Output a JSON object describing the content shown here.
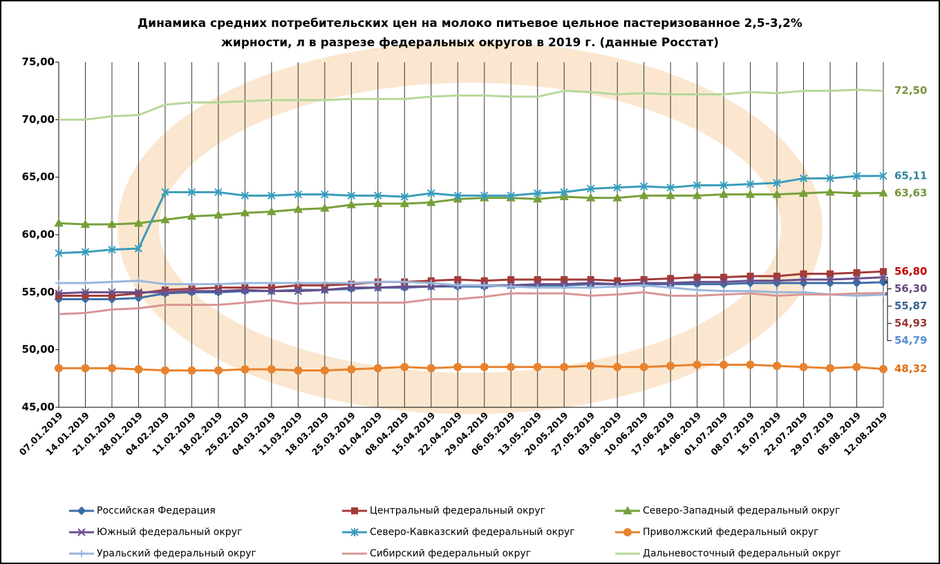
{
  "chart_data": {
    "type": "line",
    "title": [
      "Динамика средних потребительских цен на молоко питьевое цельное пастеризованное 2,5-3,2%",
      "жирности, л в разрезе федеральных округов  в 2019 г. (данные Росстат)"
    ],
    "categories": [
      "07.01.2019",
      "14.01.2019",
      "21.01.2019",
      "28.01.2019",
      "04.02.2019",
      "11.02.2019",
      "18.02.2019",
      "25.02.2019",
      "04.03.2019",
      "11.03.2019",
      "18.03.2019",
      "25.03.2019",
      "01.04.2019",
      "08.04.2019",
      "15.04.2019",
      "22.04.2019",
      "29.04.2019",
      "06.05.2019",
      "13.05.2019",
      "20.05.2019",
      "27.05.2019",
      "03.06.2019",
      "10.06.2019",
      "17.06.2019",
      "24.06.2019",
      "01.07.2019",
      "08.07.2019",
      "15.07.2019",
      "22.07.2019",
      "29.07.2019",
      "05.08.2019",
      "12.08.2019"
    ],
    "ylim": [
      45,
      75
    ],
    "yticks": [
      {
        "value": 45,
        "label": "45,00"
      },
      {
        "value": 50,
        "label": "50,00"
      },
      {
        "value": 55,
        "label": "55,00"
      },
      {
        "value": 60,
        "label": "60,00"
      },
      {
        "value": 65,
        "label": "65,00"
      },
      {
        "value": 70,
        "label": "70,00"
      },
      {
        "value": 75,
        "label": "75,00"
      }
    ],
    "grid": "vertical",
    "series": [
      {
        "name": "Российская Федерация",
        "color": "#3a6ea8",
        "label_color": "#376092",
        "marker": "diamond",
        "values": [
          54.4,
          54.4,
          54.4,
          54.5,
          54.9,
          55.0,
          55.0,
          55.1,
          55.1,
          55.2,
          55.2,
          55.3,
          55.4,
          55.4,
          55.5,
          55.5,
          55.5,
          55.6,
          55.6,
          55.6,
          55.7,
          55.7,
          55.7,
          55.7,
          55.7,
          55.7,
          55.8,
          55.8,
          55.8,
          55.8,
          55.8,
          55.87
        ],
        "value_labels": [
          null,
          null,
          null,
          null,
          null,
          null,
          null,
          null,
          null,
          null,
          null,
          null,
          null,
          null,
          null,
          null,
          null,
          null,
          null,
          null,
          null,
          null,
          null,
          null,
          null,
          null,
          null,
          null,
          null,
          null,
          null,
          "55,87"
        ]
      },
      {
        "name": "Центральный федеральный округ",
        "color": "#a33b38",
        "label_color": "#c00000",
        "marker": "square",
        "values": [
          54.7,
          54.7,
          54.7,
          54.9,
          55.2,
          55.3,
          55.4,
          55.4,
          55.4,
          55.6,
          55.6,
          55.7,
          55.9,
          55.9,
          56.0,
          56.1,
          56.0,
          56.1,
          56.1,
          56.1,
          56.1,
          56.0,
          56.1,
          56.2,
          56.3,
          56.3,
          56.4,
          56.4,
          56.6,
          56.6,
          56.7,
          56.8
        ],
        "value_labels": [
          null,
          null,
          null,
          null,
          null,
          null,
          null,
          null,
          null,
          null,
          null,
          null,
          null,
          null,
          null,
          null,
          null,
          null,
          null,
          null,
          null,
          null,
          null,
          null,
          null,
          null,
          null,
          null,
          null,
          null,
          null,
          "56,80"
        ]
      },
      {
        "name": "Северо-Западный федеральный округ",
        "color": "#77a03a",
        "label_color": "#77933c",
        "marker": "triangle",
        "values": [
          61.0,
          60.9,
          60.9,
          61.0,
          61.3,
          61.6,
          61.7,
          61.9,
          62.0,
          62.2,
          62.3,
          62.6,
          62.7,
          62.7,
          62.8,
          63.1,
          63.2,
          63.2,
          63.1,
          63.3,
          63.2,
          63.2,
          63.4,
          63.4,
          63.4,
          63.5,
          63.5,
          63.5,
          63.6,
          63.7,
          63.6,
          63.63
        ],
        "value_labels": [
          null,
          null,
          null,
          null,
          null,
          null,
          null,
          null,
          null,
          null,
          null,
          null,
          null,
          null,
          null,
          null,
          null,
          null,
          null,
          null,
          null,
          null,
          null,
          null,
          null,
          null,
          null,
          null,
          null,
          null,
          null,
          "63,63"
        ]
      },
      {
        "name": "Южный федеральный округ",
        "color": "#6a4f8c",
        "label_color": "#5f497a",
        "marker": "x",
        "values": [
          54.9,
          55.0,
          55.0,
          55.0,
          55.0,
          55.1,
          55.1,
          55.2,
          55.1,
          55.1,
          55.2,
          55.4,
          55.4,
          55.5,
          55.5,
          55.6,
          55.6,
          55.6,
          55.7,
          55.7,
          55.8,
          55.7,
          55.8,
          55.8,
          55.9,
          55.9,
          56.0,
          56.0,
          56.1,
          56.1,
          56.2,
          56.3
        ],
        "value_labels": [
          null,
          null,
          null,
          null,
          null,
          null,
          null,
          null,
          null,
          null,
          null,
          null,
          null,
          null,
          null,
          null,
          null,
          null,
          null,
          null,
          null,
          null,
          null,
          null,
          null,
          null,
          null,
          null,
          null,
          null,
          null,
          "56,30"
        ]
      },
      {
        "name": "Северо-Кавказский федеральный округ",
        "color": "#3a9cba",
        "label_color": "#31849b",
        "marker": "asterisk",
        "values": [
          58.4,
          58.5,
          58.7,
          58.8,
          63.7,
          63.7,
          63.7,
          63.4,
          63.4,
          63.5,
          63.5,
          63.4,
          63.4,
          63.3,
          63.6,
          63.4,
          63.4,
          63.4,
          63.6,
          63.7,
          64.0,
          64.1,
          64.2,
          64.1,
          64.3,
          64.3,
          64.4,
          64.5,
          64.9,
          64.9,
          65.1,
          65.11
        ],
        "value_labels": [
          null,
          null,
          null,
          null,
          null,
          null,
          null,
          null,
          null,
          null,
          null,
          null,
          null,
          null,
          null,
          null,
          null,
          null,
          null,
          null,
          null,
          null,
          null,
          null,
          null,
          null,
          null,
          null,
          null,
          null,
          null,
          "65,11"
        ]
      },
      {
        "name": "Приволжский федеральный округ",
        "color": "#e8822e",
        "label_color": "#e46c0a",
        "marker": "circle",
        "values": [
          48.4,
          48.4,
          48.4,
          48.3,
          48.2,
          48.2,
          48.2,
          48.3,
          48.3,
          48.2,
          48.2,
          48.3,
          48.4,
          48.5,
          48.4,
          48.5,
          48.5,
          48.5,
          48.5,
          48.5,
          48.6,
          48.5,
          48.5,
          48.6,
          48.7,
          48.7,
          48.7,
          48.6,
          48.5,
          48.4,
          48.5,
          48.32
        ],
        "value_labels": [
          null,
          null,
          null,
          null,
          null,
          null,
          null,
          null,
          null,
          null,
          null,
          null,
          null,
          null,
          null,
          null,
          null,
          null,
          null,
          null,
          null,
          null,
          null,
          null,
          null,
          null,
          null,
          null,
          null,
          null,
          null,
          "48,32"
        ]
      },
      {
        "name": "Уральский федеральный округ",
        "color": "#9ab6dc",
        "label_color": "#558ed5",
        "marker": "plus",
        "values": [
          55.8,
          55.8,
          55.9,
          56.0,
          55.7,
          55.7,
          55.7,
          55.8,
          55.8,
          55.8,
          55.8,
          55.8,
          55.9,
          55.9,
          55.8,
          55.6,
          55.6,
          55.5,
          55.4,
          55.4,
          55.4,
          55.5,
          55.6,
          55.4,
          55.2,
          55.1,
          55.1,
          55.0,
          55.0,
          54.8,
          54.7,
          54.79
        ],
        "value_labels": [
          null,
          null,
          null,
          null,
          null,
          null,
          null,
          null,
          null,
          null,
          null,
          null,
          null,
          null,
          null,
          null,
          null,
          null,
          null,
          null,
          null,
          null,
          null,
          null,
          null,
          null,
          null,
          null,
          null,
          null,
          null,
          "54,79"
        ]
      },
      {
        "name": "Сибирский федеральный округ",
        "color": "#d99694",
        "label_color": "#953735",
        "marker": "none",
        "values": [
          53.1,
          53.2,
          53.5,
          53.6,
          53.9,
          53.9,
          53.9,
          54.1,
          54.3,
          54.0,
          54.1,
          54.1,
          54.1,
          54.1,
          54.4,
          54.4,
          54.6,
          54.9,
          54.9,
          54.9,
          54.7,
          54.8,
          55.0,
          54.7,
          54.7,
          54.8,
          54.9,
          54.7,
          54.8,
          54.8,
          54.9,
          54.93
        ],
        "value_labels": [
          null,
          null,
          null,
          null,
          null,
          null,
          null,
          null,
          null,
          null,
          null,
          null,
          null,
          null,
          null,
          null,
          null,
          null,
          null,
          null,
          null,
          null,
          null,
          null,
          null,
          null,
          null,
          null,
          null,
          null,
          null,
          "54,93"
        ]
      },
      {
        "name": "Дальневосточный федеральный округ",
        "color": "#b5d89a",
        "label_color": "#77933c",
        "marker": "none",
        "values": [
          70.0,
          70.0,
          70.3,
          70.4,
          71.3,
          71.5,
          71.5,
          71.6,
          71.7,
          71.7,
          71.7,
          71.8,
          71.8,
          71.8,
          72.0,
          72.1,
          72.1,
          72.0,
          72.0,
          72.5,
          72.4,
          72.2,
          72.3,
          72.2,
          72.2,
          72.2,
          72.4,
          72.3,
          72.5,
          72.5,
          72.6,
          72.5
        ],
        "value_labels": [
          null,
          null,
          null,
          null,
          null,
          null,
          null,
          null,
          null,
          null,
          null,
          null,
          null,
          null,
          null,
          null,
          null,
          null,
          null,
          null,
          null,
          null,
          null,
          null,
          null,
          null,
          null,
          null,
          null,
          null,
          null,
          "72,50"
        ]
      }
    ]
  }
}
